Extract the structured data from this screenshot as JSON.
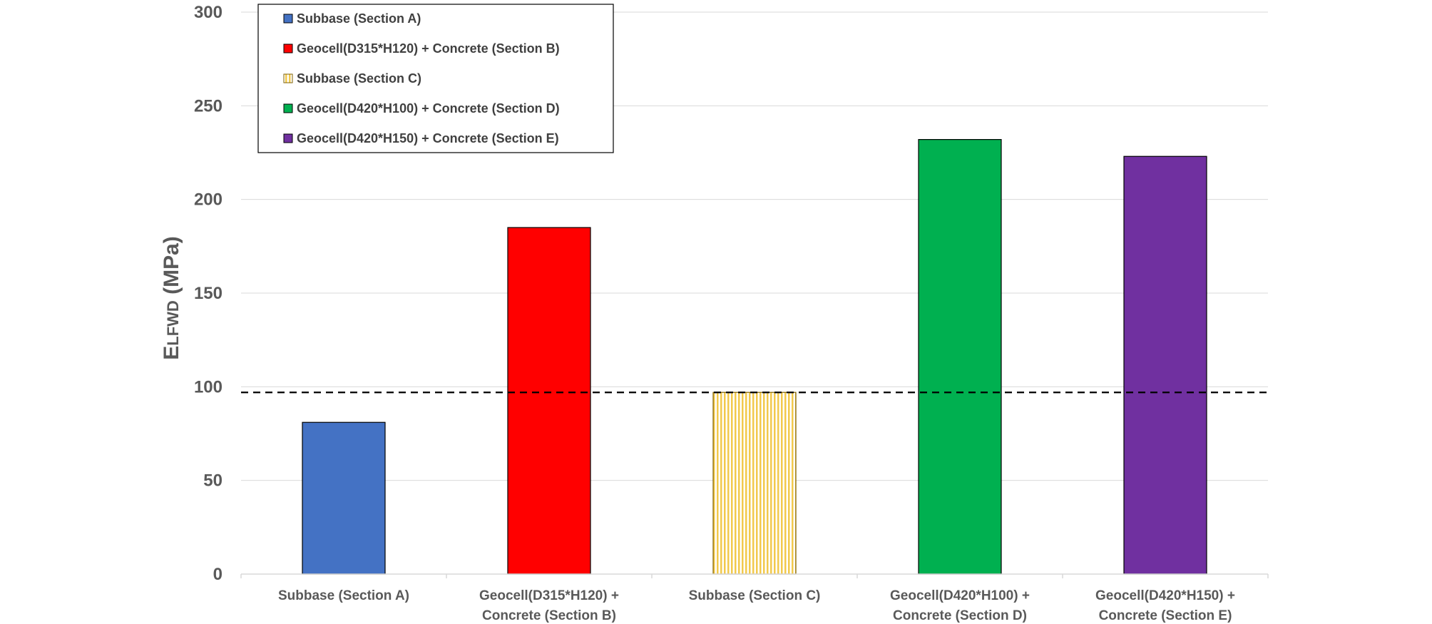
{
  "chart_data": {
    "type": "bar",
    "ylabel": "E",
    "ylabel_sub": "LFWD",
    "ylabel_unit": " (MPa)",
    "ylim": [
      0,
      300
    ],
    "yticks": [
      0,
      50,
      100,
      150,
      200,
      250,
      300
    ],
    "grid": true,
    "legend_placement": "top-left",
    "reference_line": {
      "value": 97,
      "style": "dashed",
      "color": "#000000"
    },
    "categories": [
      [
        "Subbase (Section A)"
      ],
      [
        "Geocell(D315*H120) +",
        "Concrete (Section B)"
      ],
      [
        "Subbase (Section C)"
      ],
      [
        "Geocell(D420*H100) +",
        "Concrete (Section D)"
      ],
      [
        "Geocell(D420*H150) +",
        "Concrete (Section E)"
      ]
    ],
    "values": [
      81,
      185,
      97,
      232,
      223
    ],
    "series": [
      {
        "name": "Subbase (Section A)",
        "color": "#4472C4",
        "pattern": "solid"
      },
      {
        "name": "Geocell(D315*H120) + Concrete (Section B)",
        "color": "#FF0000",
        "pattern": "solid"
      },
      {
        "name": "Subbase (Section C)",
        "color": "#F2C94C",
        "pattern": "vertical-stripes"
      },
      {
        "name": "Geocell(D420*H100) + Concrete (Section D)",
        "color": "#00B050",
        "pattern": "solid"
      },
      {
        "name": "Geocell(D420*H150) + Concrete (Section E)",
        "color": "#7030A0",
        "pattern": "solid"
      }
    ]
  }
}
